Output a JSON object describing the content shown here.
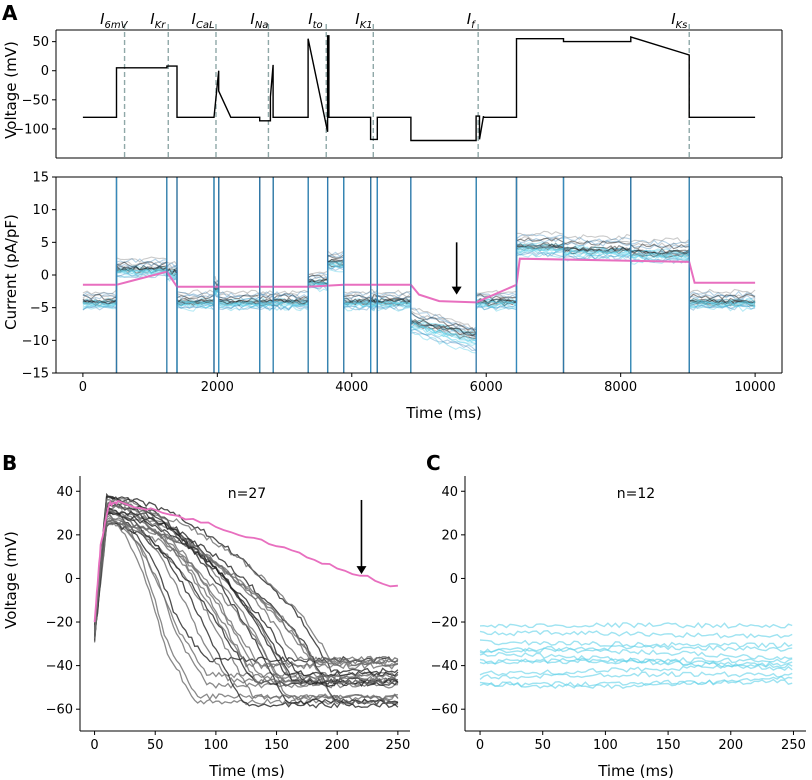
{
  "panels": {
    "a": "A",
    "b": "B",
    "c": "C"
  },
  "colors": {
    "pink": "#e86fbf",
    "cyan": "#5fd0e8",
    "gray": "#6b6b6b",
    "dark": "#222222",
    "blue": "#2f7fb8",
    "dashed": "#8fa8a8"
  },
  "chart_data": [
    {
      "id": "A-voltage",
      "type": "line",
      "title": "",
      "xlabel": "",
      "ylabel": "Voltage (mV)",
      "xlim": [
        -400,
        10400
      ],
      "ylim": [
        -150,
        70
      ],
      "yticks": [
        50,
        0,
        -50,
        -100
      ],
      "ytick_labels": [
        "50",
        "0",
        "−50",
        "−100"
      ],
      "protocol_x": [
        0,
        500,
        500,
        1250,
        1250,
        1400,
        1400,
        1950,
        1950,
        2020,
        2020,
        2200,
        2200,
        2630,
        2630,
        2790,
        2790,
        2830,
        2830,
        3350,
        3350,
        3640,
        3640,
        3660,
        3660,
        3880,
        3880,
        4280,
        4280,
        4380,
        4380,
        4880,
        4880,
        5850,
        5850,
        5900,
        5900,
        5960,
        5960,
        6450,
        6450,
        7150,
        7150,
        8150,
        8150,
        9020,
        9020,
        10000
      ],
      "protocol_y": [
        -80,
        -80,
        5,
        5,
        8,
        8,
        -80,
        -80,
        -80,
        0,
        -35,
        -80,
        -80,
        -80,
        -86,
        -86,
        -45,
        10,
        -80,
        -80,
        55,
        -105,
        60,
        60,
        -80,
        -80,
        -80,
        -80,
        -118,
        -118,
        -80,
        -80,
        -120,
        -120,
        -78,
        -78,
        -118,
        -78,
        -80,
        -80,
        55,
        55,
        50,
        50,
        58,
        27,
        -80,
        -80
      ],
      "current_markers": [
        {
          "name": "I",
          "sub": "6mV",
          "x": 620
        },
        {
          "name": "I",
          "sub": "Kr",
          "x": 1270
        },
        {
          "name": "I",
          "sub": "CaL",
          "x": 1980
        },
        {
          "name": "I",
          "sub": "Na",
          "x": 2760
        },
        {
          "name": "I",
          "sub": "to",
          "x": 3620
        },
        {
          "name": "I",
          "sub": "K1",
          "x": 4320
        },
        {
          "name": "I",
          "sub": "f",
          "x": 5880
        },
        {
          "name": "I",
          "sub": "Ks",
          "x": 9020
        }
      ]
    },
    {
      "id": "A-current",
      "type": "line",
      "title": "",
      "xlabel": "Time (ms)",
      "ylabel": "Current (pA/pF)",
      "xlim": [
        -400,
        10400
      ],
      "ylim": [
        -15,
        15
      ],
      "xticks": [
        0,
        2000,
        4000,
        6000,
        8000,
        10000
      ],
      "yticks": [
        15,
        10,
        5,
        0,
        -5,
        -10,
        -15
      ],
      "ytick_labels": [
        "15",
        "10",
        "5",
        "0",
        "−5",
        "−10",
        "−15"
      ],
      "segments": [
        {
          "x0": 0,
          "x1": 500,
          "level": -4
        },
        {
          "x0": 500,
          "x1": 1250,
          "level": 1
        },
        {
          "x0": 1250,
          "x1": 1400,
          "level": 0.5
        },
        {
          "x0": 1400,
          "x1": 1950,
          "level": -4
        },
        {
          "x0": 1950,
          "x1": 2020,
          "level": -2
        },
        {
          "x0": 2020,
          "x1": 2630,
          "level": -4
        },
        {
          "x0": 2630,
          "x1": 2830,
          "level": -4
        },
        {
          "x0": 2830,
          "x1": 3350,
          "level": -4
        },
        {
          "x0": 3350,
          "x1": 3640,
          "level": -1
        },
        {
          "x0": 3640,
          "x1": 3880,
          "level": 2
        },
        {
          "x0": 3880,
          "x1": 4280,
          "level": -4
        },
        {
          "x0": 4280,
          "x1": 4380,
          "level": -4
        },
        {
          "x0": 4380,
          "x1": 4880,
          "level": -4
        },
        {
          "x0": 4880,
          "x1": 5850,
          "level": -7
        },
        {
          "x0": 5850,
          "x1": 6450,
          "level": -4
        },
        {
          "x0": 6450,
          "x1": 7150,
          "level": 4.5
        },
        {
          "x0": 7150,
          "x1": 8150,
          "level": 4
        },
        {
          "x0": 8150,
          "x1": 9020,
          "level": 3.5
        },
        {
          "x0": 9020,
          "x1": 10000,
          "level": -4
        }
      ],
      "arrow": {
        "x": 5560,
        "y_from": 5,
        "y_to": -3
      },
      "pink_series": [
        [
          0,
          -1.5
        ],
        [
          500,
          -1.5
        ],
        [
          1250,
          0.5
        ],
        [
          1400,
          -1.8
        ],
        [
          1950,
          -1.8
        ],
        [
          2630,
          -1.8
        ],
        [
          2830,
          -1.8
        ],
        [
          3350,
          -1.8
        ],
        [
          3880,
          -1.5
        ],
        [
          4880,
          -1.5
        ],
        [
          5000,
          -3
        ],
        [
          5300,
          -4
        ],
        [
          5850,
          -4.2
        ],
        [
          6450,
          -1.5
        ],
        [
          6500,
          2.5
        ],
        [
          9020,
          2
        ],
        [
          9100,
          -1.2
        ],
        [
          10000,
          -1.2
        ]
      ]
    },
    {
      "id": "B",
      "type": "line",
      "title": "n=27",
      "xlabel": "Time (ms)",
      "ylabel": "Voltage (mV)",
      "xlim": [
        -12,
        260
      ],
      "ylim": [
        -70,
        47
      ],
      "xticks": [
        0,
        50,
        100,
        150,
        200,
        250
      ],
      "yticks": [
        40,
        20,
        0,
        -20,
        -40,
        -60
      ],
      "ytick_labels": [
        "40",
        "20",
        "0",
        "−20",
        "−40",
        "−60"
      ],
      "n": 27,
      "pink_series": [
        [
          0,
          -20
        ],
        [
          5,
          15
        ],
        [
          12,
          34
        ],
        [
          20,
          35
        ],
        [
          50,
          31
        ],
        [
          100,
          24
        ],
        [
          150,
          15
        ],
        [
          200,
          5
        ],
        [
          250,
          -4
        ]
      ],
      "arrow": {
        "x": 220,
        "y_from": 36,
        "y_to": 2
      }
    },
    {
      "id": "C",
      "type": "line",
      "title": "n=12",
      "xlabel": "Time (ms)",
      "ylabel": "",
      "xlim": [
        -12,
        260
      ],
      "ylim": [
        -70,
        47
      ],
      "xticks": [
        0,
        50,
        100,
        150,
        200,
        250
      ],
      "yticks": [
        40,
        20,
        0,
        -20,
        -40,
        -60
      ],
      "ytick_labels": [
        "40",
        "20",
        "0",
        "−20",
        "−40",
        "−60"
      ],
      "n": 12,
      "levels": [
        -22,
        -26,
        -30,
        -33,
        -35,
        -37,
        -38,
        -40,
        -42,
        -45,
        -47,
        -48
      ]
    }
  ]
}
